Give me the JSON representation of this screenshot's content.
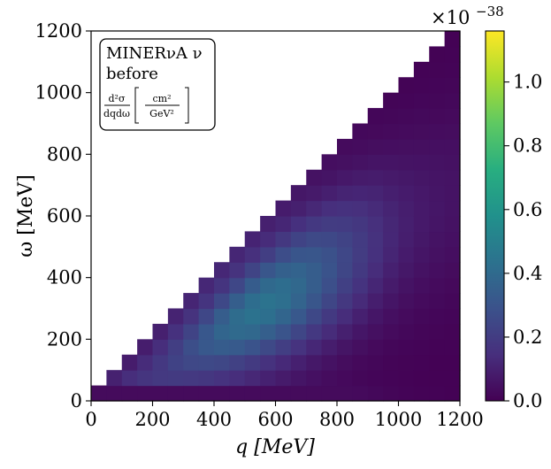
{
  "chart_data": {
    "type": "heatmap",
    "annotation": {
      "line1": "MINERνA ν",
      "line2": "before",
      "formula_numerator": "d²σ",
      "formula_denominator": "dqdω",
      "unit_numerator": "cm²",
      "unit_denominator": "GeV²"
    },
    "xlabel": "q [MeV]",
    "ylabel": "ω [MeV]",
    "x_ticks": [
      "0",
      "200",
      "400",
      "600",
      "800",
      "1000",
      "1200"
    ],
    "y_ticks": [
      "0",
      "200",
      "400",
      "600",
      "800",
      "1000",
      "1200"
    ],
    "xlim": [
      0,
      1200
    ],
    "ylim": [
      0,
      1200
    ],
    "bin_width": 50,
    "colorbar": {
      "range": [
        0,
        1.16
      ],
      "ticks": [
        "0.0",
        "0.2",
        "0.4",
        "0.6",
        "0.8",
        "1.0"
      ],
      "multiplier_base": "×10",
      "multiplier_exponent": "−38",
      "colormap": "viridis"
    },
    "grid": false,
    "note": "Values in the colorbar scale (×10⁻³⁸ cm²/GeV²); only bins with ω ≤ q are populated; estimated from colors"
  }
}
